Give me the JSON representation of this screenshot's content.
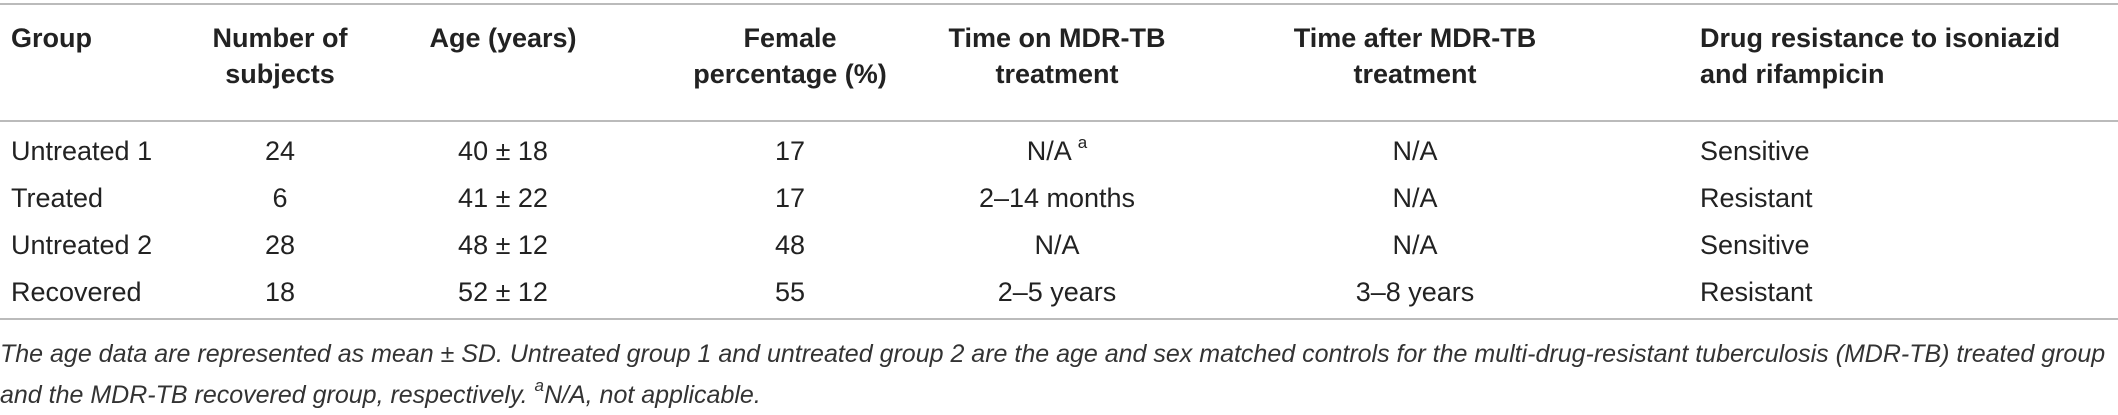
{
  "table": {
    "header": [
      "Group",
      "Number of subjects",
      "Age (years)",
      "Female percentage (%)",
      "Time on MDR-TB treatment",
      "Time after MDR-TB treatment",
      "Drug resistance to isoniazid and rifampicin"
    ],
    "rows": [
      [
        "Untreated 1",
        "24",
        "40 ± 18",
        "17",
        {
          "text": "N/A",
          "sup": "a"
        },
        "N/A",
        "Sensitive"
      ],
      [
        "Treated",
        "6",
        "41 ± 22",
        "17",
        "2–14 months",
        "N/A",
        "Resistant"
      ],
      [
        "Untreated 2",
        "28",
        "48 ± 12",
        "48",
        "N/A",
        "N/A",
        "Sensitive"
      ],
      [
        "Recovered",
        "18",
        "52 ± 12",
        "55",
        "2–5 years",
        "3–8 years",
        "Resistant"
      ]
    ]
  },
  "footnote": {
    "text": "The age data are represented as mean ± SD. Untreated group 1 and untreated group 2 are the age and sex matched controls for the multi-drug-resistant tuberculosis (MDR-TB) treated group and the MDR-TB recovered group, respectively. ",
    "sup": "a",
    "note": "N/A, not applicable."
  }
}
